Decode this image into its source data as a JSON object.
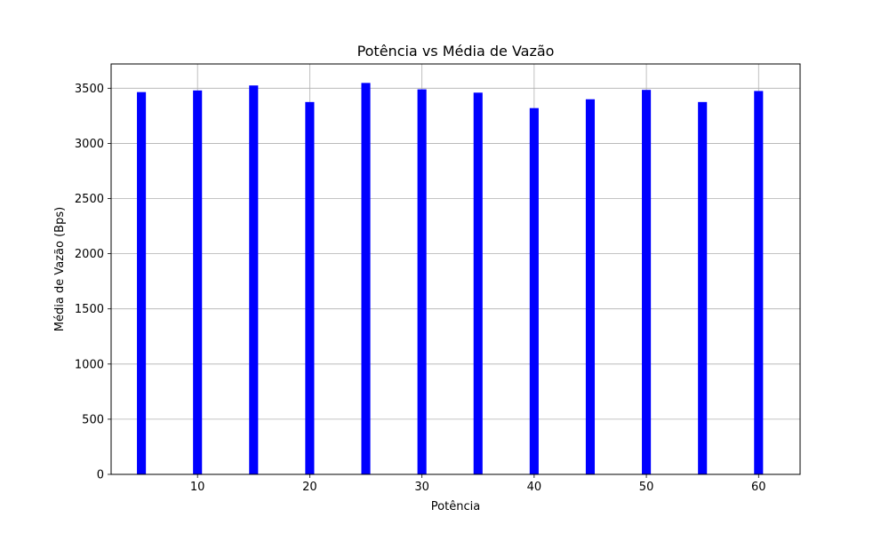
{
  "chart_data": {
    "type": "bar",
    "title": "Potência vs Média de Vazão",
    "xlabel": "Potência",
    "ylabel": "Média de Vazão (Bps)",
    "x": [
      5,
      10,
      15,
      20,
      25,
      30,
      35,
      40,
      45,
      50,
      55,
      60
    ],
    "values": [
      3465,
      3480,
      3525,
      3375,
      3548,
      3490,
      3460,
      3320,
      3400,
      3485,
      3375,
      3475
    ],
    "bar_width": 0.8,
    "xlim": [
      2.3,
      63.7
    ],
    "ylim": [
      0,
      3720
    ],
    "xticks": [
      10,
      20,
      30,
      40,
      50,
      60
    ],
    "yticks": [
      0,
      500,
      1000,
      1500,
      2000,
      2500,
      3000,
      3500
    ],
    "grid": true,
    "bar_color": "#0000ff"
  }
}
